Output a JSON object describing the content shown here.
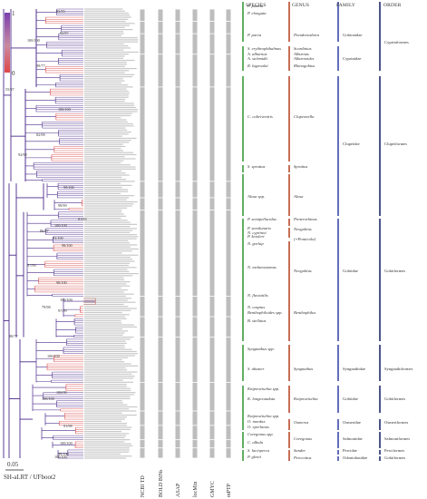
{
  "legend": {
    "max_label": "1",
    "min_label": "0",
    "gradient_top": "#7b3fb0",
    "gradient_mid": "#c98aa0",
    "gradient_bottom": "#e14545"
  },
  "scale": {
    "label": "0.05"
  },
  "support_label": "SH-aLRT / UFboot2",
  "method_columns": [
    "NCBI TD",
    "BOLD BINs",
    "ASAP",
    "locMin",
    "GMYC",
    "mPTP"
  ],
  "headers": {
    "species": "SPECIES",
    "genus": "GENUS",
    "family": "FAMILY",
    "order": "ORDER"
  },
  "node_labels": [
    {
      "text": "95/55"
    },
    {
      "text": "95/97"
    },
    {
      "text": "100/100"
    },
    {
      "text": "99/77"
    },
    {
      "text": "55/97"
    },
    {
      "text": "100/100"
    },
    {
      "text": "82/98"
    },
    {
      "text": "92/98"
    },
    {
      "text": "99/100"
    },
    {
      "text": "99/99"
    },
    {
      "text": "81/83"
    },
    {
      "text": "100/100"
    },
    {
      "text": "86/97"
    },
    {
      "text": "93/100"
    },
    {
      "text": "98/100"
    },
    {
      "text": "97/99"
    },
    {
      "text": "98/100"
    },
    {
      "text": "100/100"
    },
    {
      "text": "79/98"
    },
    {
      "text": "97/99"
    },
    {
      "text": "80/77"
    },
    {
      "text": "100/100"
    },
    {
      "text": "100/99"
    },
    {
      "text": "100/100"
    },
    {
      "text": "91/98"
    },
    {
      "text": "100/100"
    },
    {
      "text": "99/100"
    },
    {
      "text": "100/100"
    }
  ],
  "species": [
    {
      "name": "P. pumila"
    },
    {
      "name": "P. elongata"
    },
    {
      "name": "P. parva"
    },
    {
      "name": "S. erythrophthalmus"
    },
    {
      "name": "A. alburnus"
    },
    {
      "name": "A. sichmidti"
    },
    {
      "name": "R. lagowskii"
    },
    {
      "name": "C. cultriventris"
    },
    {
      "name": "S. sprattus"
    },
    {
      "name": "Alosa spp."
    },
    {
      "name": "P. semipellucidus"
    },
    {
      "name": "P. semilunaris"
    },
    {
      "name": "N. cyprinoi"
    },
    {
      "name": "P. kessleri"
    },
    {
      "name": "N. gorlap"
    },
    {
      "name": "N. melanostomus"
    },
    {
      "name": "N. fluviatilis"
    },
    {
      "name": "N. caspius"
    },
    {
      "name": "Benthophiloides spp."
    },
    {
      "name": "B. stellatus"
    },
    {
      "name": "Syngnathus spp."
    },
    {
      "name": "S. abaster"
    },
    {
      "name": "Knipowitschia spp."
    },
    {
      "name": "K. longecaudata"
    },
    {
      "name": "Knipowitschia spp."
    },
    {
      "name": "O. mordax"
    },
    {
      "name": "O. eperlanus"
    },
    {
      "name": "Coregonus spp."
    },
    {
      "name": "C. albula"
    },
    {
      "name": "S. lucioperca"
    },
    {
      "name": "P. glenii"
    }
  ],
  "genera": [
    {
      "name": "Pseudorasbora"
    },
    {
      "name": "Scardinius"
    },
    {
      "name": "Alburnus"
    },
    {
      "name": "Alburnoides"
    },
    {
      "name": "Rhinogobius"
    },
    {
      "name": "Clupeonella"
    },
    {
      "name": "Sprattus"
    },
    {
      "name": "Alosa"
    },
    {
      "name": "Proterorhinus"
    },
    {
      "name": "Neogobius"
    },
    {
      "name": "(=Ponticola)"
    },
    {
      "name": "Neogobius"
    },
    {
      "name": "Benthophilus"
    },
    {
      "name": "Syngnathus"
    },
    {
      "name": "Knipowitschia"
    },
    {
      "name": "Osmerus"
    },
    {
      "name": "Coregonus"
    },
    {
      "name": "Sander"
    },
    {
      "name": "Perccottus"
    }
  ],
  "families": [
    {
      "name": "Gobionidae"
    },
    {
      "name": "Cyprinidae"
    },
    {
      "name": "Clupeidae"
    },
    {
      "name": "Gobiidae"
    },
    {
      "name": "Syngnathidae"
    },
    {
      "name": "Gobiidae"
    },
    {
      "name": "Osmeridae"
    },
    {
      "name": "Salmonidae"
    },
    {
      "name": "Percidae"
    },
    {
      "name": "Odontobutidae"
    }
  ],
  "orders": [
    {
      "name": "Cypriniformes"
    },
    {
      "name": "Clupeiformes"
    },
    {
      "name": "Gobiiformes"
    },
    {
      "name": "Syngnathiformes"
    },
    {
      "name": "Gobiiformes"
    },
    {
      "name": "Osmeriformes"
    },
    {
      "name": "Salmoniformes"
    },
    {
      "name": "Perciformes"
    },
    {
      "name": "Gobiiformes"
    }
  ],
  "colors": {
    "branch": "#4a2a8a",
    "branch_red": "#d94a4a",
    "species_bar": "#3a9a3a",
    "genus_bar": "#b84a2a",
    "family_bar": "#3a4aa8",
    "order_bar": "#1e2a6a",
    "method_bar": "#bdbdbd"
  }
}
